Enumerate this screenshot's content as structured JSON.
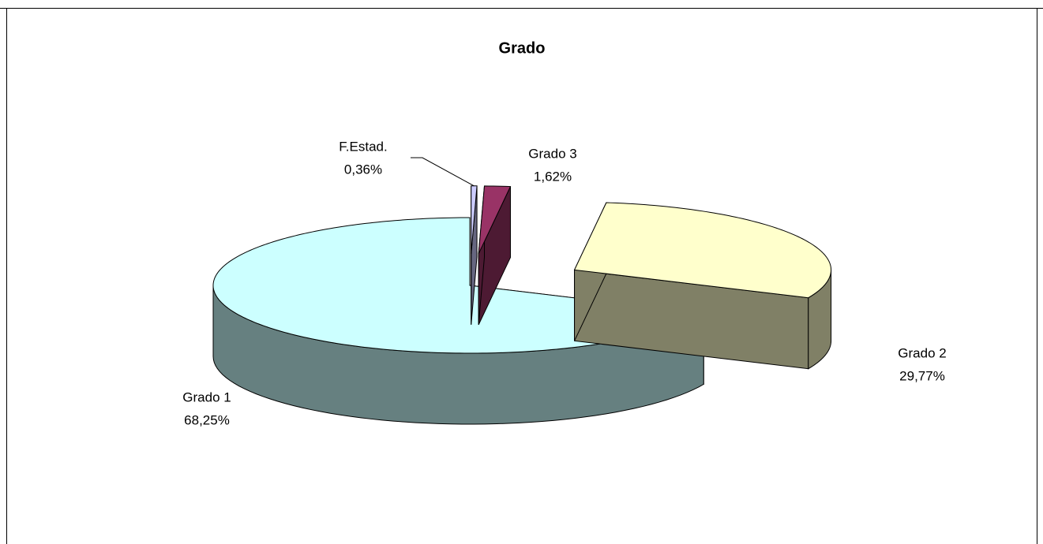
{
  "chart_data": {
    "type": "pie",
    "title": "Grado",
    "categories": [
      "Grado 1",
      "Grado 2",
      "Grado 3",
      "F.Estad."
    ],
    "values": [
      68.25,
      29.77,
      1.62,
      0.36
    ],
    "value_labels": [
      "68,25%",
      "29,77%",
      "1,62%",
      "0,36%"
    ],
    "colors": [
      "#ccffff",
      "#ffffcc",
      "#993366",
      "#ccccff"
    ]
  }
}
